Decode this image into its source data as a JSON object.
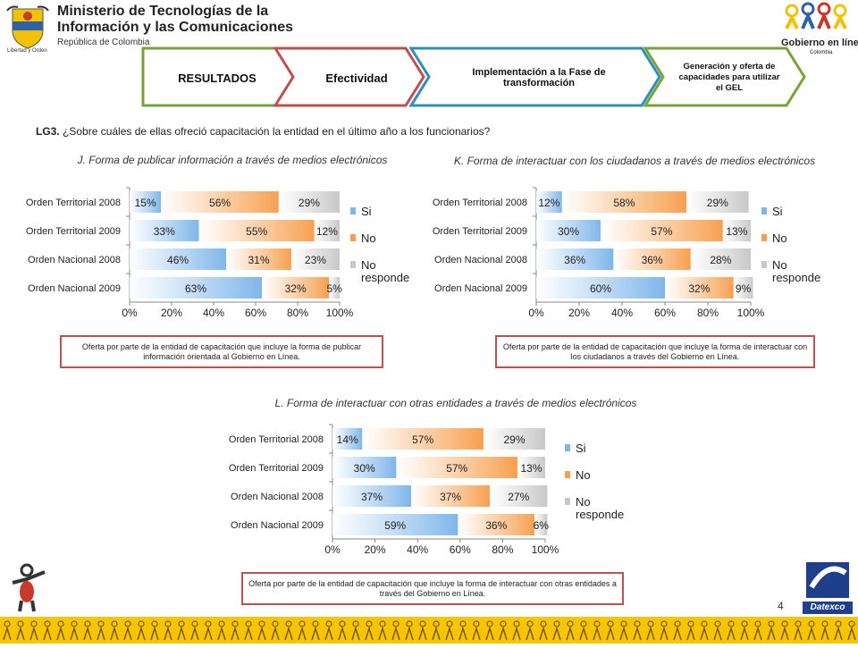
{
  "header": {
    "ministry_line1": "Ministerio de Tecnologías de la",
    "ministry_line2": "Información y las Comunicaciones",
    "ministry_line3": "República de Colombia",
    "seal_motto": "Libertad y Orden",
    "gel_logo_line1": "Gobierno en línea",
    "gel_logo_line2": "Colombia"
  },
  "nav": {
    "steps": [
      {
        "label": "RESULTADOS",
        "border_color": "#77a33a"
      },
      {
        "label": "Efectividad",
        "border_color": "#c0504d"
      },
      {
        "label": "Implementación  a la Fase de transformación",
        "border_color": "#2f8fb8"
      },
      {
        "label": "Generación y oferta de capacidades para utilizar el GEL",
        "border_color": "#77a33a"
      }
    ]
  },
  "question": {
    "code": "LG3.",
    "text": "¿Sobre cuáles de ellas ofreció capacitación la entidad en el último año a los  funcionarios?"
  },
  "colors": {
    "si": "#7fb6ea",
    "no": "#f7a050",
    "no_responde": "#c8c8c8",
    "box_border": "#c0504d",
    "footer": "#f6c500"
  },
  "chart_data": [
    {
      "type": "bar",
      "orientation": "horizontal",
      "stacked": true,
      "title": "J. Forma de publicar información a través de medios electrónicos",
      "categories": [
        "Orden Territorial 2008",
        "Orden Territorial 2009",
        "Orden Nacional 2008",
        "Orden Nacional 2009"
      ],
      "series": [
        {
          "name": "Si",
          "values": [
            15,
            33,
            46,
            63
          ]
        },
        {
          "name": "No",
          "values": [
            56,
            55,
            31,
            32
          ]
        },
        {
          "name": "No responde",
          "values": [
            29,
            12,
            23,
            5
          ]
        }
      ],
      "xlim": [
        0,
        100
      ],
      "xticks": [
        "0%",
        "20%",
        "40%",
        "60%",
        "80%",
        "100%"
      ],
      "legend": "right",
      "note": "Oferta por parte de la entidad de capacitación que incluye la forma de publicar información orientada al Gobierno en Línea."
    },
    {
      "type": "bar",
      "orientation": "horizontal",
      "stacked": true,
      "title": "K. Forma de interactuar con los ciudadanos a través de medios electrónicos",
      "categories": [
        "Orden Territorial 2008",
        "Orden Territorial 2009",
        "Orden Nacional 2008",
        "Orden Nacional 2009"
      ],
      "series": [
        {
          "name": "Si",
          "values": [
            12,
            30,
            36,
            60
          ]
        },
        {
          "name": "No",
          "values": [
            58,
            57,
            36,
            32
          ]
        },
        {
          "name": "No responde",
          "values": [
            29,
            13,
            28,
            9
          ]
        }
      ],
      "xlim": [
        0,
        100
      ],
      "xticks": [
        "0%",
        "20%",
        "40%",
        "60%",
        "80%",
        "100%"
      ],
      "legend": "right",
      "note": "Oferta por parte de la entidad de capacitación que incluye la forma de interactuar con los ciudadanos a través del Gobierno en Línea."
    },
    {
      "type": "bar",
      "orientation": "horizontal",
      "stacked": true,
      "title": "L. Forma de interactuar con otras entidades a través de medios electrónicos",
      "categories": [
        "Orden Territorial 2008",
        "Orden Territorial 2009",
        "Orden Nacional 2008",
        "Orden Nacional 2009"
      ],
      "series": [
        {
          "name": "Si",
          "values": [
            14,
            30,
            37,
            59
          ]
        },
        {
          "name": "No",
          "values": [
            57,
            57,
            37,
            36
          ]
        },
        {
          "name": "No responde",
          "values": [
            29,
            13,
            27,
            6
          ]
        }
      ],
      "xlim": [
        0,
        100
      ],
      "xticks": [
        "0%",
        "20%",
        "40%",
        "60%",
        "80%",
        "100%"
      ],
      "legend": "right",
      "note": "Oferta por parte de la entidad de capacitación que incluye la forma de interactuar con otras entidades a través del Gobierno en Línea."
    }
  ],
  "footer": {
    "page_number": "4",
    "brand": "Datexco"
  }
}
